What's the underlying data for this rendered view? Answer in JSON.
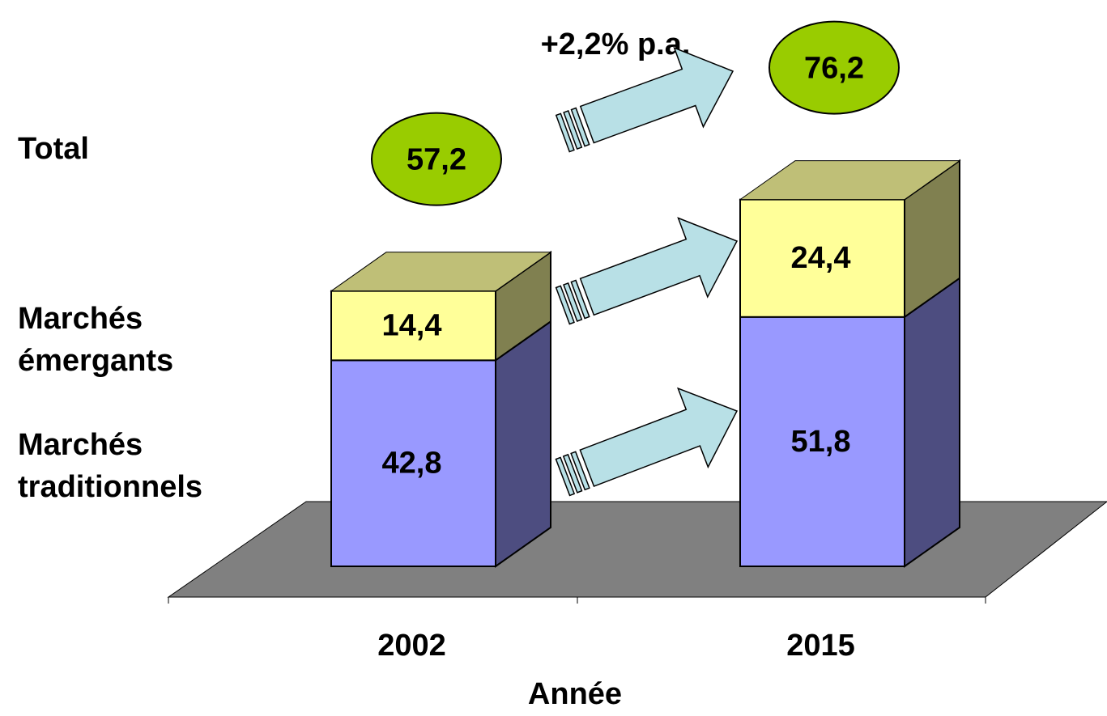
{
  "chart_data": {
    "type": "bar",
    "stacked": true,
    "categories": [
      "2002",
      "2015"
    ],
    "series": [
      {
        "name": "Marchés traditionnels",
        "color": "#9999ff",
        "side_color": "#4d4d80",
        "values": [
          42.8,
          51.8
        ],
        "value_labels": [
          "42,8",
          "51,8"
        ]
      },
      {
        "name": "Marchés émergants",
        "color": "#ffff99",
        "side_color": "#808050",
        "top_color": "#bfbf77",
        "values": [
          14.4,
          24.4
        ],
        "value_labels": [
          "14,4",
          "24,4"
        ]
      }
    ],
    "totals": {
      "name": "Total",
      "color": "#99cc00",
      "values": [
        57.2,
        76.2
      ],
      "value_labels": [
        "57,2",
        "76,2"
      ]
    },
    "annotation": "+2,2% p.a.",
    "x_label": "Année",
    "ylim": [
      0,
      80
    ]
  }
}
